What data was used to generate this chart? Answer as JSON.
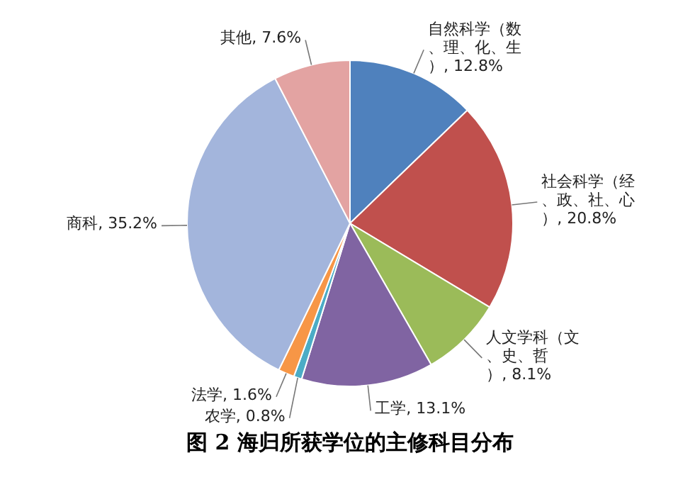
{
  "chart_data": {
    "type": "pie",
    "title": "图 2 海归所获学位的主修科目分布",
    "categories": [
      "自然科学（数、理、化、生）",
      "社会科学（经、政、社、心）",
      "人文学科（文、史、哲）",
      "工学",
      "农学",
      "法学",
      "商科",
      "其他"
    ],
    "values": [
      12.8,
      20.8,
      8.1,
      13.1,
      0.8,
      1.6,
      35.2,
      7.6
    ],
    "value_labels": [
      "12.8%",
      "20.8%",
      "8.1%",
      "13.1%",
      "0.8%",
      "1.6%",
      "35.2%",
      "7.6%"
    ],
    "colors": [
      "#4f81bd",
      "#c0504d",
      "#9bbb59",
      "#8064a2",
      "#4bacc6",
      "#f79646",
      "#a3b5dc",
      "#e3a3a2"
    ],
    "legend": false
  }
}
